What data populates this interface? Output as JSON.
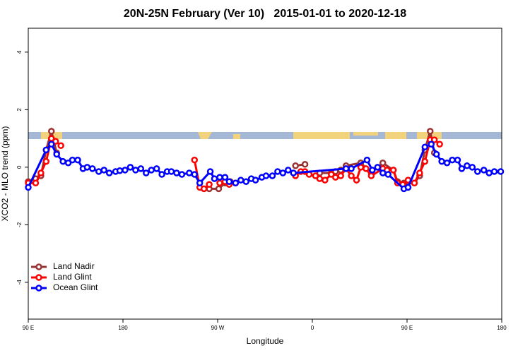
{
  "chart_data": {
    "type": "line",
    "title": "20N-25N February (Ver 10)   2015-01-01 to 2020-12-18",
    "x_label": "Longitude",
    "y_label": "XCO2 - MLO trend (ppm)",
    "xlim": [
      90,
      540
    ],
    "ylim": [
      -5.28,
      4.83
    ],
    "xticks": [
      {
        "value": 90,
        "label": "90 E"
      },
      {
        "value": 180,
        "label": "180"
      },
      {
        "value": 270,
        "label": "90 W"
      },
      {
        "value": 360,
        "label": "0"
      },
      {
        "value": 450,
        "label": "90 E"
      },
      {
        "value": 540,
        "label": "180"
      }
    ],
    "yticks": [
      -4,
      -2,
      0,
      2,
      4
    ],
    "legend": "bottom-left",
    "series": [
      {
        "name": "Land Nadir",
        "color": "#993333",
        "x": [
          90,
          97,
          102,
          107,
          112,
          117,
          null,
          262,
          271,
          277,
          282,
          null,
          344,
          353,
          null,
          367,
          378,
          382,
          387,
          392,
          406,
          416,
          427,
          437,
          441,
          447,
          457,
          462,
          467,
          472,
          476
        ],
        "values": [
          -0.5,
          -0.4,
          -0.3,
          0.6,
          1.25,
          0.5,
          null,
          -0.75,
          -0.75,
          -0.55,
          -0.5,
          null,
          0.05,
          0.1,
          null,
          -0.2,
          -0.2,
          -0.15,
          -0.1,
          0.05,
          0.15,
          -0.2,
          0.15,
          -0.1,
          -0.5,
          -0.55,
          -0.55,
          -0.3,
          0.6,
          1.25,
          0.5
        ]
      },
      {
        "name": "Land Glint",
        "color": "#ff0000",
        "x": [
          90,
          97,
          102,
          107,
          112,
          116,
          121,
          null,
          248,
          253,
          257,
          262,
          null,
          272,
          277,
          281,
          287,
          null,
          344,
          349,
          353,
          357,
          363,
          367,
          372,
          378,
          382,
          387,
          392,
          397,
          402,
          406,
          411,
          416,
          427,
          431,
          437,
          441,
          446,
          451,
          457,
          462,
          467,
          472,
          476,
          481
        ],
        "values": [
          -0.55,
          -0.55,
          -0.2,
          0.2,
          1.0,
          0.9,
          0.75,
          null,
          0.25,
          -0.7,
          -0.75,
          -0.6,
          null,
          -0.55,
          -0.5,
          -0.6,
          -0.55,
          null,
          -0.3,
          -0.15,
          -0.15,
          -0.25,
          -0.3,
          -0.4,
          -0.45,
          -0.25,
          -0.35,
          -0.3,
          -0.05,
          -0.3,
          -0.45,
          0.0,
          -0.05,
          -0.3,
          -0.05,
          -0.1,
          -0.1,
          -0.55,
          -0.6,
          -0.45,
          -0.55,
          -0.2,
          0.2,
          0.95,
          0.95,
          0.8
        ]
      },
      {
        "name": "Ocean Glint",
        "color": "#0000ff",
        "x": [
          90,
          107,
          112,
          117,
          123,
          128,
          132,
          137,
          142,
          146,
          151,
          157,
          162,
          167,
          173,
          177,
          182,
          187,
          192,
          197,
          202,
          207,
          212,
          217,
          222,
          226,
          231,
          236,
          243,
          248,
          253,
          263,
          267,
          272,
          277,
          281,
          287,
          292,
          297,
          302,
          306,
          312,
          316,
          322,
          327,
          332,
          337,
          342,
          392,
          397,
          412,
          417,
          422,
          427,
          432,
          447,
          451,
          467,
          473,
          478,
          483,
          488,
          493,
          498,
          502,
          507,
          512,
          517,
          523,
          528,
          533,
          539
        ],
        "values": [
          -0.7,
          0.6,
          0.8,
          0.45,
          0.2,
          0.15,
          0.25,
          0.25,
          -0.05,
          0.0,
          -0.05,
          -0.15,
          -0.1,
          -0.2,
          -0.15,
          -0.12,
          -0.1,
          0.0,
          -0.1,
          -0.05,
          -0.2,
          -0.1,
          -0.05,
          -0.25,
          -0.15,
          -0.15,
          -0.2,
          -0.25,
          -0.2,
          -0.25,
          -0.55,
          -0.15,
          -0.4,
          -0.35,
          -0.35,
          -0.5,
          -0.55,
          -0.45,
          -0.5,
          -0.4,
          -0.45,
          -0.35,
          -0.3,
          -0.3,
          -0.15,
          -0.2,
          -0.1,
          -0.2,
          -0.05,
          -0.05,
          0.25,
          -0.1,
          0.0,
          -0.2,
          -0.25,
          -0.75,
          -0.7,
          0.7,
          0.8,
          0.45,
          0.2,
          0.15,
          0.25,
          0.25,
          -0.05,
          0.05,
          0.0,
          -0.15,
          -0.1,
          -0.2,
          -0.15,
          -0.15
        ]
      }
    ]
  }
}
